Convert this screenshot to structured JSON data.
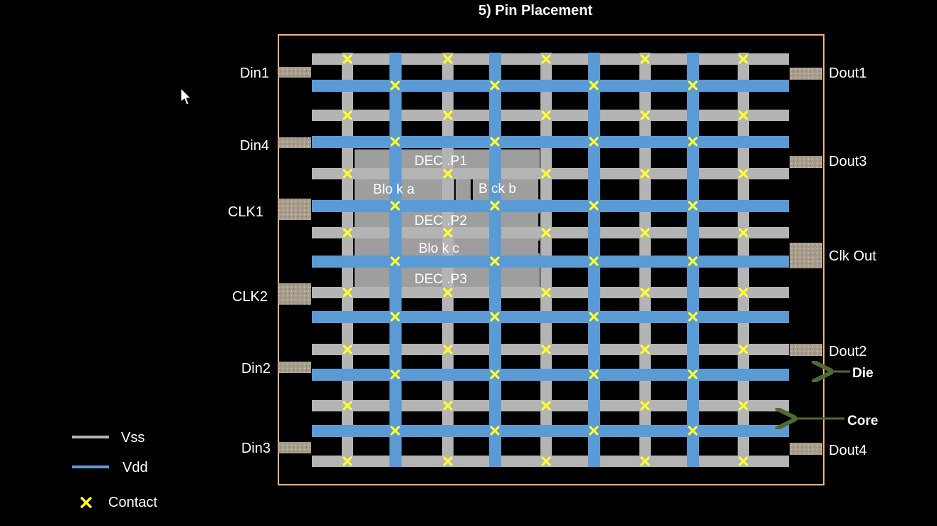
{
  "title": "5) Pin Placement",
  "colors": {
    "vss": "#b4b4b4",
    "vdd": "#5b9bd5",
    "contact": "#ffff33",
    "die_border": "#f4b183",
    "pin": "#a89c8c",
    "arrow": "#4f6b2f",
    "block_fill": "#9e9e9e"
  },
  "pins_left": [
    {
      "label": "Din1"
    },
    {
      "label": "Din4"
    },
    {
      "label": "CLK1"
    },
    {
      "label": "CLK2"
    },
    {
      "label": "Din2"
    },
    {
      "label": "Din3"
    }
  ],
  "pins_right": [
    {
      "label": "Dout1"
    },
    {
      "label": "Dout3"
    },
    {
      "label": "Clk Out"
    },
    {
      "label": "Dout2"
    },
    {
      "label": "Dout4"
    }
  ],
  "blocks": [
    {
      "label": "DEC .P1"
    },
    {
      "label": "Blo k a"
    },
    {
      "label": "B ck b"
    },
    {
      "label": "DEC .P2"
    },
    {
      "label": "Blo k c"
    },
    {
      "label": "DEC .P3"
    }
  ],
  "annotations": {
    "die": "Die",
    "core": "Core"
  },
  "legend": [
    {
      "name": "vss",
      "label": "Vss"
    },
    {
      "name": "vdd",
      "label": "Vdd"
    },
    {
      "name": "contact",
      "label": "Contact"
    }
  ],
  "icons": [
    "cursor-icon",
    "contact-icon",
    "arrow-icon"
  ]
}
